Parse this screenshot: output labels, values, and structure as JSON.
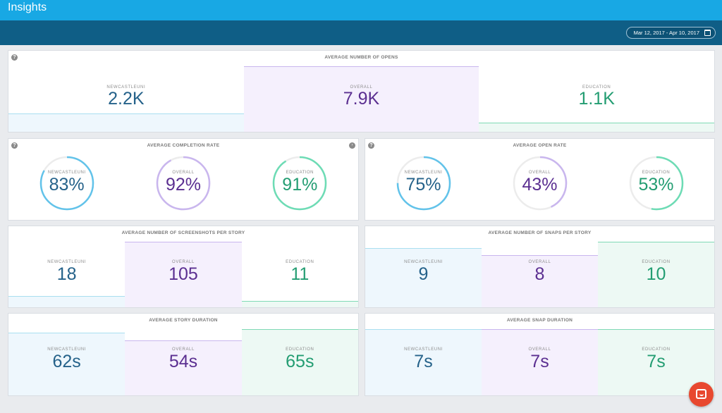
{
  "header": {
    "title": "Insights"
  },
  "date_range": {
    "label": "Mar 12, 2017 - Apr 10, 2017"
  },
  "colors": {
    "blue": "#25628a",
    "purple": "#5b2f91",
    "green": "#239d72",
    "topbar": "#18a8e4",
    "subbar": "#0f5e86"
  },
  "cards": {
    "opens": {
      "title": "AVERAGE NUMBER OF OPENS",
      "cols": [
        {
          "label": "NEWCASTLEUNI",
          "value": "2.2K",
          "fill": 0.28
        },
        {
          "label": "OVERALL",
          "value": "7.9K",
          "fill": 1.0
        },
        {
          "label": "EDUCATION",
          "value": "1.1K",
          "fill": 0.14
        }
      ]
    },
    "completion_rate": {
      "title": "AVERAGE COMPLETION RATE",
      "rings": [
        {
          "label": "NEWCASTLEUNI",
          "value": "83%",
          "percent": 83
        },
        {
          "label": "OVERALL",
          "value": "92%",
          "percent": 92
        },
        {
          "label": "EDUCATION",
          "value": "91%",
          "percent": 91
        }
      ]
    },
    "open_rate": {
      "title": "AVERAGE OPEN RATE",
      "rings": [
        {
          "label": "NEWCASTLEUNI",
          "value": "75%",
          "percent": 75
        },
        {
          "label": "OVERALL",
          "value": "43%",
          "percent": 43
        },
        {
          "label": "EDUCATION",
          "value": "53%",
          "percent": 53
        }
      ]
    },
    "screenshots": {
      "title": "AVERAGE NUMBER OF SCREENSHOTS PER STORY",
      "cols": [
        {
          "label": "NEWCASTLEUNI",
          "value": "18",
          "fill": 0.17
        },
        {
          "label": "OVERALL",
          "value": "105",
          "fill": 1.0
        },
        {
          "label": "EDUCATION",
          "value": "11",
          "fill": 0.1
        }
      ]
    },
    "snaps": {
      "title": "AVERAGE NUMBER OF SNAPS PER STORY",
      "cols": [
        {
          "label": "NEWCASTLEUNI",
          "value": "9",
          "fill": 0.9
        },
        {
          "label": "OVERALL",
          "value": "8",
          "fill": 0.8
        },
        {
          "label": "EDUCATION",
          "value": "10",
          "fill": 1.0
        }
      ]
    },
    "story_duration": {
      "title": "AVERAGE STORY DURATION",
      "cols": [
        {
          "label": "NEWCASTLEUNI",
          "value": "62s",
          "fill": 0.95
        },
        {
          "label": "OVERALL",
          "value": "54s",
          "fill": 0.83
        },
        {
          "label": "EDUCATION",
          "value": "65s",
          "fill": 1.0
        }
      ]
    },
    "snap_duration": {
      "title": "AVERAGE SNAP DURATION",
      "cols": [
        {
          "label": "NEWCASTLEUNI",
          "value": "7s",
          "fill": 1.0
        },
        {
          "label": "OVERALL",
          "value": "7s",
          "fill": 1.0
        },
        {
          "label": "EDUCATION",
          "value": "7s",
          "fill": 1.0
        }
      ]
    }
  }
}
